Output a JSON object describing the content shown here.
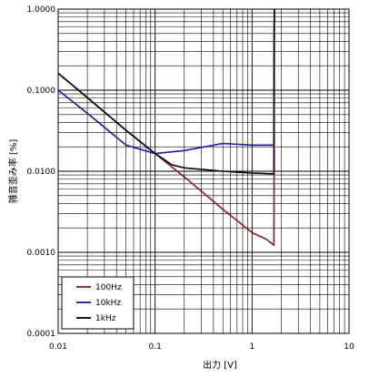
{
  "chart_data": {
    "type": "line",
    "xlabel": "出力 [V]",
    "ylabel": "雑音歪み率 [%]",
    "x_scale": "log",
    "y_scale": "log",
    "xlim": [
      0.01,
      10
    ],
    "ylim": [
      0.0001,
      1
    ],
    "x_ticks": [
      "0.01",
      "0.1",
      "1",
      "10"
    ],
    "y_ticks": [
      "1.0000",
      "0.1000",
      "0.0100",
      "0.0010",
      "0.0001"
    ],
    "grid": true,
    "legend_position": "bottom-left",
    "series": [
      {
        "name": "100Hz",
        "color": "#8b1a1a",
        "x": [
          0.01,
          0.02,
          0.05,
          0.1,
          0.2,
          0.5,
          1.0,
          1.4,
          1.68,
          1.69,
          1.7
        ],
        "y": [
          0.162,
          0.081,
          0.032,
          0.0165,
          0.0085,
          0.0034,
          0.00175,
          0.00145,
          0.00122,
          0.009,
          1.0
        ]
      },
      {
        "name": "10kHz",
        "color": "#1a1aa0",
        "x": [
          0.01,
          0.02,
          0.05,
          0.1,
          0.2,
          0.5,
          1.0,
          1.68,
          1.69,
          1.7
        ],
        "y": [
          0.1,
          0.052,
          0.021,
          0.0165,
          0.018,
          0.022,
          0.021,
          0.021,
          0.5,
          1.0
        ]
      },
      {
        "name": "1kHz",
        "color": "#000000",
        "x": [
          0.01,
          0.02,
          0.05,
          0.1,
          0.15,
          0.2,
          0.5,
          1.0,
          1.68,
          1.69,
          1.7
        ],
        "y": [
          0.162,
          0.081,
          0.032,
          0.0165,
          0.012,
          0.011,
          0.01,
          0.0095,
          0.0093,
          0.5,
          1.0
        ]
      }
    ]
  }
}
